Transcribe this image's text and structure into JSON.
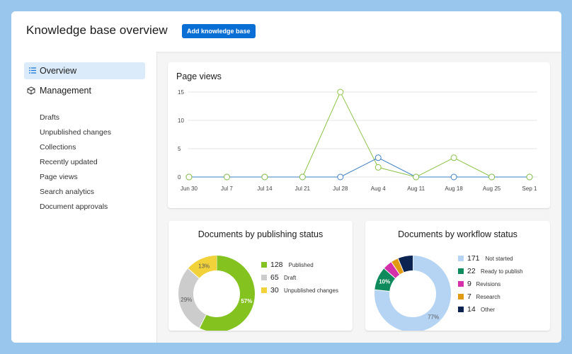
{
  "header": {
    "title": "Knowledge base overview",
    "add_button_label": "Add knowledge base"
  },
  "sidebar": {
    "overview_label": "Overview",
    "management_label": "Management",
    "items": [
      "Drafts",
      "Unpublished changes",
      "Collections",
      "Recently updated",
      "Page views",
      "Search analytics",
      "Document approvals"
    ]
  },
  "colors": {
    "accent": "#0a6fd4",
    "published": "#83c21f",
    "draft": "#cccccc",
    "unpublished": "#f2d23a",
    "not_started": "#b5d4f3",
    "ready": "#0f8a5c",
    "revisions": "#d330a9",
    "research": "#e39a13",
    "other": "#0b2350",
    "series_blue": "#3d7fc4",
    "series_green": "#8dc248"
  },
  "chart_data": [
    {
      "type": "line",
      "title": "Page views",
      "x": [
        "Jun 30",
        "Jul 7",
        "Jul 14",
        "Jul 21",
        "Jul 28",
        "Aug 4",
        "Aug 11",
        "Aug 18",
        "Aug 25",
        "Sep 1"
      ],
      "series": [
        {
          "values": [
            0,
            0,
            0,
            0,
            15,
            1.7,
            0,
            3.4,
            0,
            0
          ]
        },
        {
          "values": [
            0,
            0,
            0,
            0,
            0,
            3.4,
            0,
            0,
            0,
            0
          ]
        }
      ],
      "ylim": [
        0,
        15
      ],
      "yticks": [
        "0",
        "5",
        "10",
        "15"
      ],
      "grid": true
    },
    {
      "type": "pie",
      "title": "Documents by publishing status",
      "slices": [
        {
          "label": "Published",
          "value": 128,
          "pct_label": "57%"
        },
        {
          "label": "Draft",
          "value": 65,
          "pct_label": "29%"
        },
        {
          "label": "Unpublished changes",
          "value": 30,
          "pct_label": "13%"
        }
      ]
    },
    {
      "type": "pie",
      "title": "Documents by workflow status",
      "slices": [
        {
          "label": "Not started",
          "value": 171,
          "pct_label": "77%"
        },
        {
          "label": "Ready to publish",
          "value": 22,
          "pct_label": "10%"
        },
        {
          "label": "Revisions",
          "value": 9,
          "pct_label": ""
        },
        {
          "label": "Research",
          "value": 7,
          "pct_label": ""
        },
        {
          "label": "Other",
          "value": 14,
          "pct_label": ""
        }
      ]
    }
  ]
}
